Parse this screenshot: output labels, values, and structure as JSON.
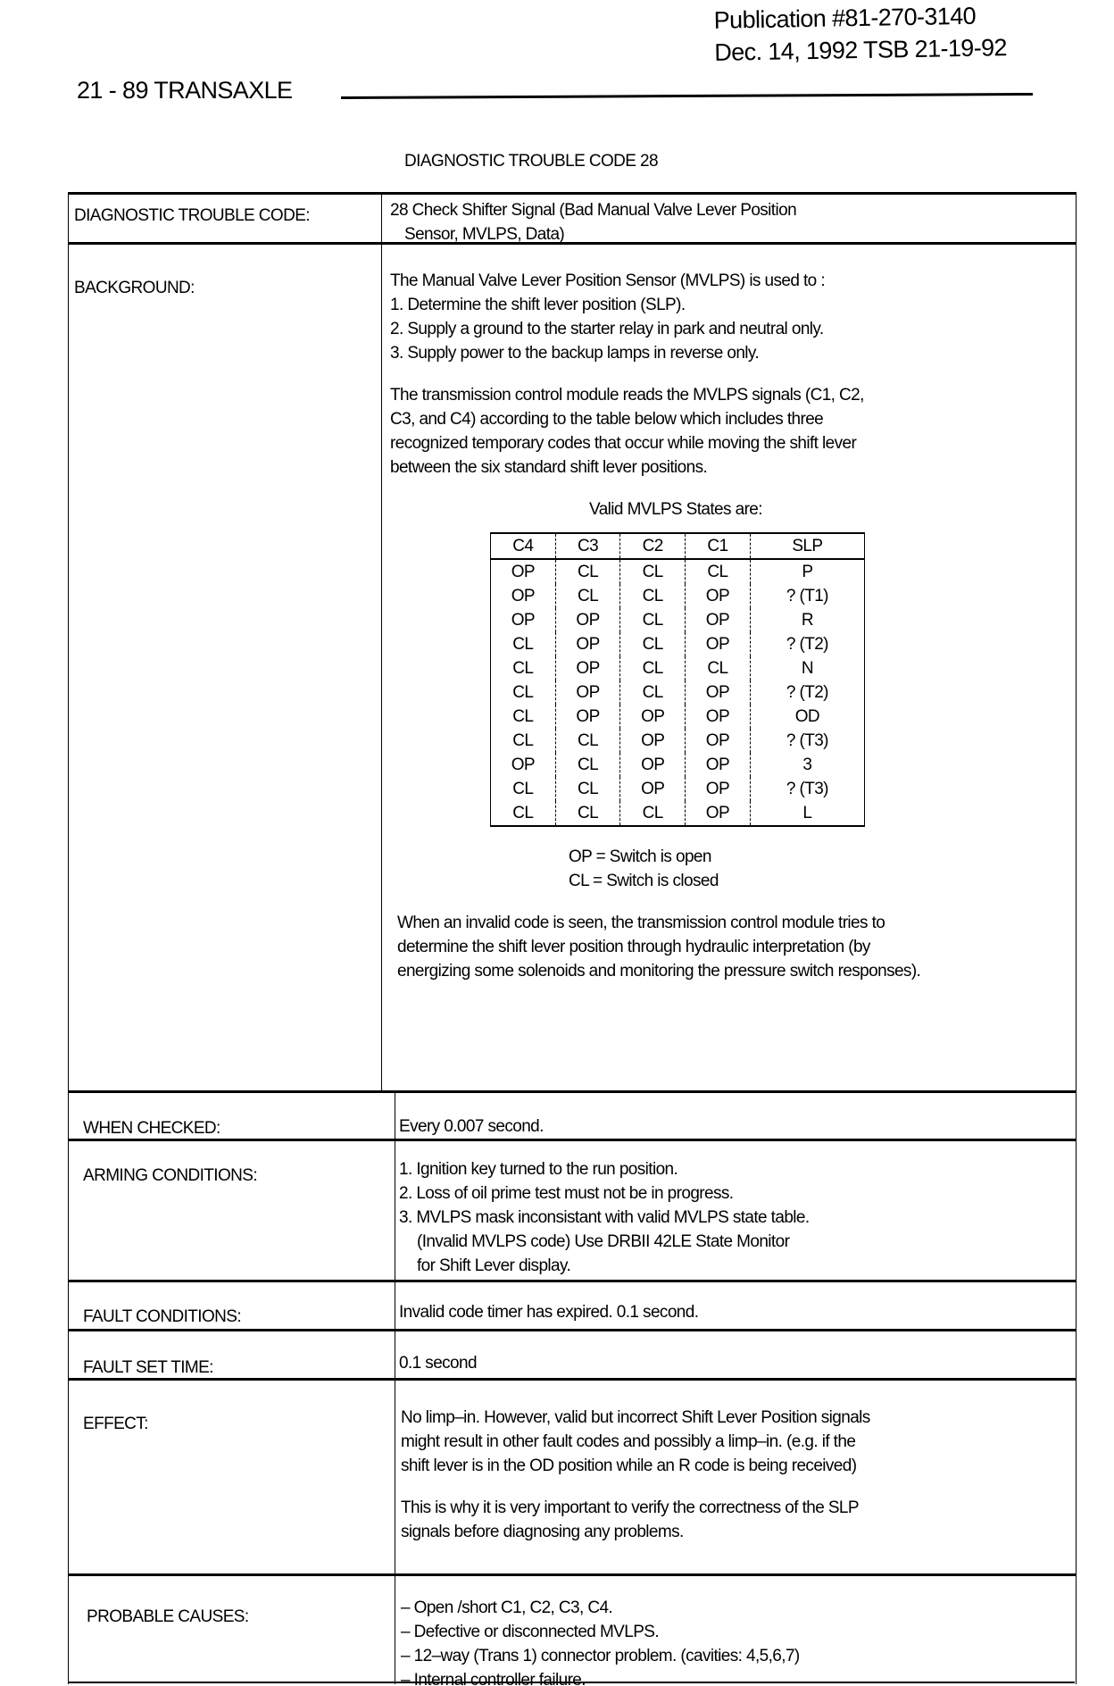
{
  "publication": {
    "number": "Publication  #81-270-3140",
    "date": "Dec. 14, 1992  TSB 21-19-92"
  },
  "header": "21 - 89  TRANSAXLE",
  "title": "DIAGNOSTIC TROUBLE CODE 28",
  "sections": {
    "dtc": {
      "label": "DIAGNOSTIC TROUBLE CODE:",
      "lines": [
        "28 Check Shifter Signal (Bad Manual Valve Lever Position",
        "Sensor, MVLPS, Data)"
      ]
    },
    "background": {
      "label": "BACKGROUND:",
      "intro": "The Manual Valve Lever Position Sensor (MVLPS) is used to :",
      "items": [
        "1. Determine the shift lever position (SLP).",
        "2. Supply a ground to the starter relay in park and neutral only.",
        "3. Supply power to the backup lamps in reverse only."
      ],
      "para": "The transmission control module reads the MVLPS signals (C1, C2, C3, and C4) according to the table below which includes three recognized temporary codes that occur while moving the shift lever between the six standard shift lever positions.",
      "table_caption": "Valid MVLPS States are:",
      "table_headers": [
        "C4",
        "C3",
        "C2",
        "C1",
        "SLP"
      ],
      "table_rows": [
        [
          "OP",
          "CL",
          "CL",
          "CL",
          "P"
        ],
        [
          "OP",
          "CL",
          "CL",
          "OP",
          "? (T1)"
        ],
        [
          "OP",
          "OP",
          "CL",
          "OP",
          "R"
        ],
        [
          "CL",
          "OP",
          "CL",
          "OP",
          "? (T2)"
        ],
        [
          "CL",
          "OP",
          "CL",
          "CL",
          "N"
        ],
        [
          "CL",
          "OP",
          "CL",
          "OP",
          "? (T2)"
        ],
        [
          "CL",
          "OP",
          "OP",
          "OP",
          "OD"
        ],
        [
          "CL",
          "CL",
          "OP",
          "OP",
          "? (T3)"
        ],
        [
          "OP",
          "CL",
          "OP",
          "OP",
          "3"
        ],
        [
          "CL",
          "CL",
          "OP",
          "OP",
          "? (T3)"
        ],
        [
          "CL",
          "CL",
          "CL",
          "OP",
          "L"
        ]
      ],
      "legend": [
        "OP = Switch is open",
        "CL = Switch is closed"
      ],
      "invalid_para": "When an invalid code is seen, the transmission control module tries to determine the shift lever position through hydraulic interpretation (by energizing some solenoids and monitoring the pressure switch responses)."
    },
    "when_checked": {
      "label": "WHEN CHECKED:",
      "text": "Every 0.007 second."
    },
    "arming": {
      "label": "ARMING CONDITIONS:",
      "items": [
        "1. Ignition key turned to the run position.",
        "2. Loss of oil prime test must not be in progress.",
        "3. MVLPS mask inconsistant with valid MVLPS state table.",
        "(Invalid MVLPS code)  Use DRBII 42LE State Monitor",
        "for Shift Lever display."
      ]
    },
    "fault_conditions": {
      "label": "FAULT CONDITIONS:",
      "text": "Invalid code timer has expired.  0.1 second."
    },
    "fault_set_time": {
      "label": "FAULT SET TIME:",
      "text": "0.1 second"
    },
    "effect": {
      "label": "EFFECT:",
      "para1": "No limp–in.  However, valid but incorrect Shift Lever Position signals might result in other fault codes and possibly a limp–in.  (e.g. if the shift lever is in the OD position while an R code is being received)",
      "para2": "This is why it is very important to verify the correctness of the SLP signals before diagnosing any problems."
    },
    "probable": {
      "label": "PROBABLE CAUSES:",
      "items": [
        "– Open /short C1, C2, C3, C4.",
        "– Defective or disconnected MVLPS.",
        "– 12–way (Trans 1) connector problem.  (cavities: 4,5,6,7)",
        "– Internal controller failure."
      ]
    }
  }
}
